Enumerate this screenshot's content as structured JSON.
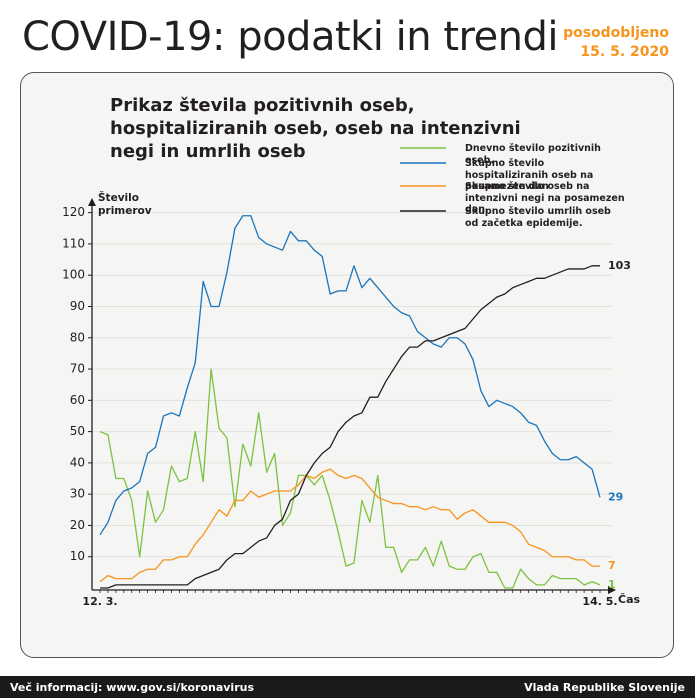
{
  "header": {
    "title": "COVID-19: podatki in trendi",
    "updated_label": "posodobljeno",
    "updated_date": "15. 5. 2020"
  },
  "chart_data": {
    "type": "line",
    "title": "Prikaz števila pozitivnih oseb, hospitaliziranih oseb, oseb na intenzivni negi in umrlih oseb",
    "y_label": "Število primerov",
    "x_label": "Čas",
    "categories": [
      "12. 3.",
      null,
      null,
      null,
      null,
      null,
      null,
      null,
      null,
      null,
      null,
      null,
      null,
      null,
      null,
      null,
      null,
      null,
      null,
      null,
      null,
      null,
      null,
      null,
      null,
      null,
      null,
      null,
      null,
      null,
      null,
      null,
      null,
      null,
      null,
      null,
      null,
      null,
      null,
      null,
      null,
      null,
      null,
      null,
      null,
      null,
      null,
      null,
      null,
      null,
      null,
      null,
      null,
      null,
      null,
      null,
      null,
      null,
      null,
      null,
      null,
      null,
      null,
      "14. 5."
    ],
    "ylim": [
      0,
      125
    ],
    "yticks": [
      10,
      20,
      30,
      40,
      50,
      60,
      70,
      80,
      90,
      100,
      110,
      120
    ],
    "grid": true,
    "series": [
      {
        "name": "Dnevno število pozitivnih oseb.",
        "color": "#7dc242",
        "values": [
          50,
          49,
          35,
          35,
          28,
          10,
          31,
          21,
          25,
          39,
          34,
          35,
          50,
          34,
          70,
          51,
          48,
          26,
          46,
          39,
          56,
          37,
          43,
          20,
          24,
          36,
          36,
          33,
          36,
          28,
          18,
          7,
          8,
          28,
          21,
          36,
          13,
          13,
          5,
          9,
          9,
          13,
          7,
          15,
          7,
          6,
          6,
          10,
          11,
          5,
          5,
          0,
          0,
          6,
          3,
          1,
          1,
          4,
          3,
          3,
          3,
          1,
          2,
          1
        ]
      },
      {
        "name": "Skupno število hospitaliziranih oseb na posamezen dan",
        "color": "#1a75bb",
        "values": [
          17,
          21,
          28,
          31,
          32,
          34,
          43,
          45,
          55,
          56,
          55,
          64,
          72,
          98,
          90,
          90,
          101,
          115,
          119,
          119,
          112,
          110,
          109,
          108,
          114,
          111,
          111,
          108,
          106,
          94,
          95,
          95,
          103,
          96,
          99,
          96,
          93,
          90,
          88,
          87,
          82,
          80,
          78,
          77,
          80,
          80,
          78,
          73,
          63,
          58,
          60,
          59,
          58,
          56,
          53,
          52,
          47,
          43,
          41,
          41,
          42,
          40,
          38,
          29
        ]
      },
      {
        "name": "Skupno število oseb na intenzivni negi na posamezen dan.",
        "color": "#f7941d",
        "values": [
          2,
          4,
          3,
          3,
          3,
          5,
          6,
          6,
          9,
          9,
          10,
          10,
          14,
          17,
          21,
          25,
          23,
          28,
          28,
          31,
          29,
          30,
          31,
          31,
          31,
          33,
          36,
          35,
          37,
          38,
          36,
          35,
          36,
          35,
          32,
          29,
          28,
          27,
          27,
          26,
          26,
          25,
          26,
          25,
          25,
          22,
          24,
          25,
          23,
          21,
          21,
          21,
          20,
          18,
          14,
          13,
          12,
          10,
          10,
          10,
          9,
          9,
          7,
          7
        ]
      },
      {
        "name": "Skupno število umrlih oseb od začetka epidemije.",
        "color": "#231f20",
        "values": [
          0,
          0,
          1,
          1,
          1,
          1,
          1,
          1,
          1,
          1,
          1,
          1,
          3,
          4,
          5,
          6,
          9,
          11,
          11,
          13,
          15,
          16,
          20,
          22,
          28,
          30,
          36,
          40,
          43,
          45,
          50,
          53,
          55,
          56,
          61,
          61,
          66,
          70,
          74,
          77,
          77,
          79,
          79,
          80,
          81,
          82,
          83,
          86,
          89,
          91,
          93,
          94,
          96,
          97,
          98,
          99,
          99,
          100,
          101,
          102,
          102,
          102,
          103,
          103
        ]
      }
    ]
  },
  "footer": {
    "left": "Več informacij: www.gov.si/koronavirus",
    "right": "Vlada Republike Slovenije"
  }
}
